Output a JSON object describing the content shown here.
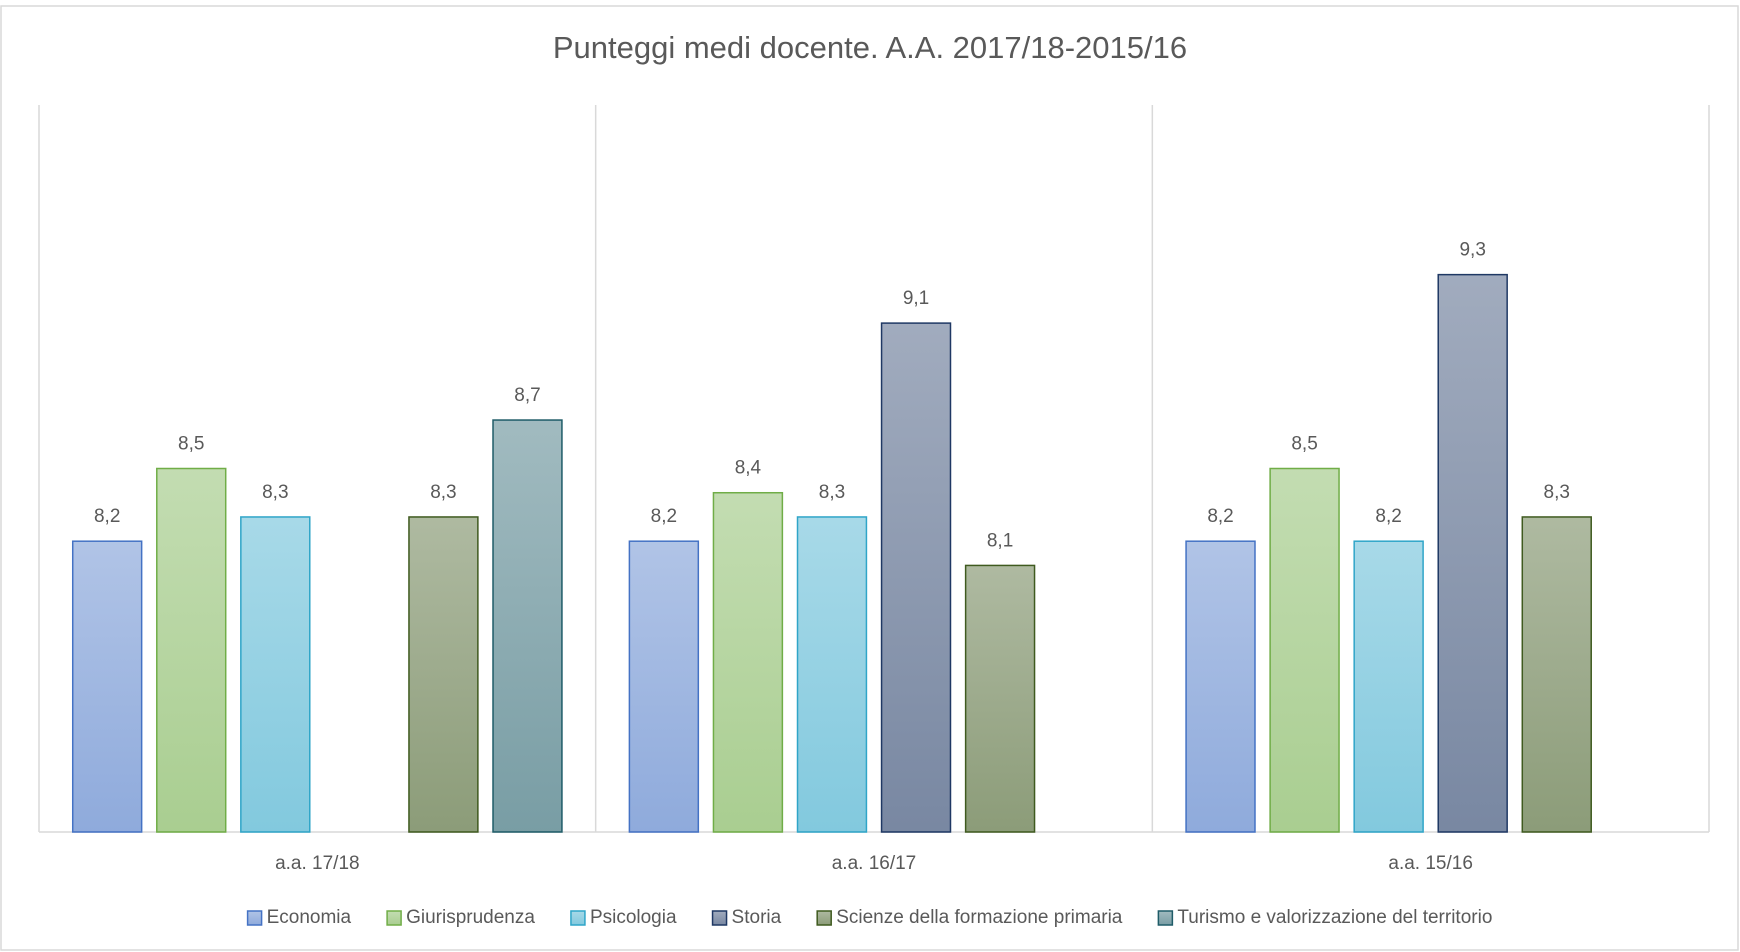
{
  "chart_data": {
    "type": "bar",
    "title": "Punteggi medi docente. A.A. 2017/18-2015/16",
    "categories": [
      "a.a. 17/18",
      "a.a. 16/17",
      "a.a. 15/16"
    ],
    "series": [
      {
        "name": "Economia",
        "color": "#4472c4",
        "values": [
          8.2,
          8.2,
          8.2
        ],
        "value_labels": [
          "8,2",
          "8,2",
          "8,2"
        ]
      },
      {
        "name": "Giurisprudenza",
        "color": "#70ad47",
        "values": [
          8.5,
          8.4,
          8.5
        ],
        "value_labels": [
          "8,5",
          "8,4",
          "8,5"
        ]
      },
      {
        "name": "Psicologia",
        "color": "#2fa5c8",
        "values": [
          8.3,
          8.3,
          8.2
        ],
        "value_labels": [
          "8,3",
          "8,3",
          "8,2"
        ]
      },
      {
        "name": "Storia",
        "color": "#1f3864",
        "values": [
          null,
          9.1,
          9.3
        ],
        "value_labels": [
          null,
          "9,1",
          "9,3"
        ]
      },
      {
        "name": "Scienze della formazione primaria",
        "color": "#3f5a1f",
        "values": [
          8.3,
          8.1,
          8.3
        ],
        "value_labels": [
          "8,3",
          "8,1",
          "8,3"
        ]
      },
      {
        "name": "Turismo e valorizzazione del territorio",
        "color": "#1f5c68",
        "values": [
          8.7,
          null,
          null
        ],
        "value_labels": [
          "8,7",
          null,
          null
        ]
      }
    ],
    "ylim": [
      7,
      10
    ],
    "legend": "bottom"
  }
}
